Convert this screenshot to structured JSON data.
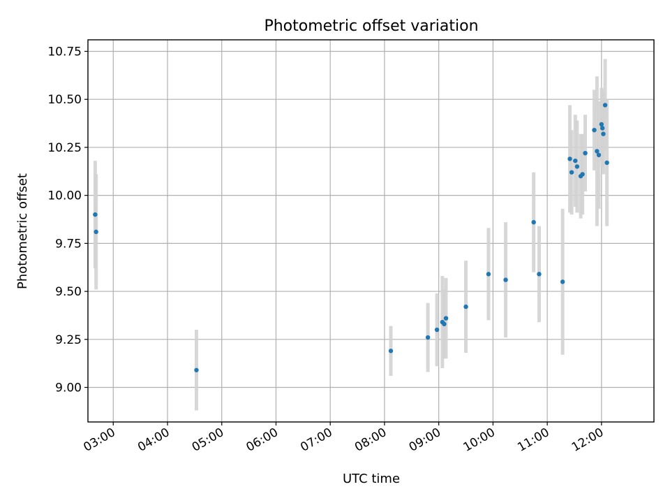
{
  "chart_data": {
    "type": "scatter",
    "title": "Photometric offset variation",
    "xlabel": "UTC time",
    "ylabel": "Photometric offset",
    "x_is_time": true,
    "x_tick_labels": [
      "03:00",
      "04:00",
      "05:00",
      "06:00",
      "07:00",
      "08:00",
      "09:00",
      "10:00",
      "11:00",
      "12:00"
    ],
    "x_ticks": [
      "03:00",
      "04:00",
      "05:00",
      "06:00",
      "07:00",
      "08:00",
      "09:00",
      "10:00",
      "11:00",
      "12:00"
    ],
    "xlim": [
      "02:32",
      "12:58"
    ],
    "ylim": [
      8.82,
      10.81
    ],
    "y_ticks": [
      9.0,
      9.25,
      9.5,
      9.75,
      10.0,
      10.25,
      10.5,
      10.75
    ],
    "y_tick_labels": [
      "9.00",
      "9.25",
      "9.50",
      "9.75",
      "10.00",
      "10.25",
      "10.50",
      "10.75"
    ],
    "grid": true,
    "colors": {
      "marker": "#1f77b4",
      "errorbar": "#d3d3d3"
    },
    "points": [
      {
        "x": "02:40",
        "y": 9.9,
        "yerr": 0.28
      },
      {
        "x": "02:41",
        "y": 9.81,
        "yerr": 0.3
      },
      {
        "x": "04:32",
        "y": 9.09,
        "yerr": 0.21
      },
      {
        "x": "08:07",
        "y": 9.19,
        "yerr": 0.13
      },
      {
        "x": "08:48",
        "y": 9.26,
        "yerr": 0.18
      },
      {
        "x": "08:58",
        "y": 9.3,
        "yerr": 0.19
      },
      {
        "x": "09:04",
        "y": 9.34,
        "yerr": 0.24
      },
      {
        "x": "09:06",
        "y": 9.33,
        "yerr": 0.18
      },
      {
        "x": "09:08",
        "y": 9.36,
        "yerr": 0.21
      },
      {
        "x": "09:30",
        "y": 9.42,
        "yerr": 0.24
      },
      {
        "x": "09:55",
        "y": 9.59,
        "yerr": 0.24
      },
      {
        "x": "10:14",
        "y": 9.56,
        "yerr": 0.3
      },
      {
        "x": "10:45",
        "y": 9.86,
        "yerr": 0.26
      },
      {
        "x": "10:51",
        "y": 9.59,
        "yerr": 0.25
      },
      {
        "x": "11:17",
        "y": 9.55,
        "yerr": 0.38
      },
      {
        "x": "11:25",
        "y": 10.19,
        "yerr": 0.28
      },
      {
        "x": "11:27",
        "y": 10.12,
        "yerr": 0.22
      },
      {
        "x": "11:31",
        "y": 10.18,
        "yerr": 0.24
      },
      {
        "x": "11:33",
        "y": 10.15,
        "yerr": 0.24
      },
      {
        "x": "11:37",
        "y": 10.1,
        "yerr": 0.22
      },
      {
        "x": "11:39",
        "y": 10.11,
        "yerr": 0.21
      },
      {
        "x": "11:42",
        "y": 10.22,
        "yerr": 0.2
      },
      {
        "x": "11:52",
        "y": 10.34,
        "yerr": 0.21
      },
      {
        "x": "11:55",
        "y": 10.23,
        "yerr": 0.39
      },
      {
        "x": "11:57",
        "y": 10.21,
        "yerr": 0.28
      },
      {
        "x": "12:00",
        "y": 10.37,
        "yerr": 0.19
      },
      {
        "x": "12:01",
        "y": 10.35,
        "yerr": 0.2
      },
      {
        "x": "12:02",
        "y": 10.32,
        "yerr": 0.21
      },
      {
        "x": "12:04",
        "y": 10.47,
        "yerr": 0.24
      },
      {
        "x": "12:06",
        "y": 10.17,
        "yerr": 0.33
      }
    ]
  }
}
